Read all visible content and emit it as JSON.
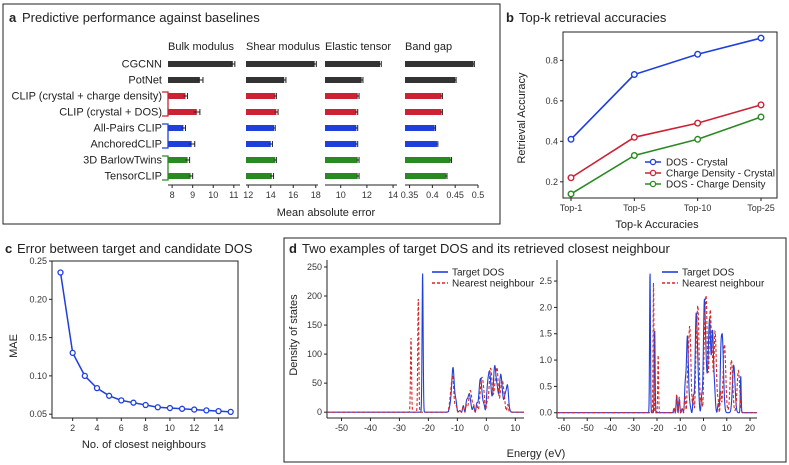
{
  "colors": {
    "black": "#333333",
    "red": "#cc2233",
    "blue": "#1f3fdd",
    "green": "#2a8a22",
    "dos_blue": "#1f3fdd",
    "dos_red": "#d62728",
    "top_blue": "#1f3fdd",
    "top_red": "#cc2233",
    "top_green": "#2a8a22"
  },
  "chart_data": [
    {
      "id": "a",
      "type": "bar",
      "panel_letter": "a",
      "title": "Predictive performance against baselines",
      "xlabel": "Mean absolute error",
      "methods": [
        {
          "name": "CGCNN",
          "color": "black"
        },
        {
          "name": "PotNet",
          "color": "black"
        },
        {
          "name": "CLIP (crystal + charge density)",
          "color": "red"
        },
        {
          "name": "CLIP (crystal + DOS)",
          "color": "red"
        },
        {
          "name": "All-Pairs CLIP",
          "color": "blue"
        },
        {
          "name": "AnchoredCLIP",
          "color": "blue"
        },
        {
          "name": "3D BarlowTwins",
          "color": "green"
        },
        {
          "name": "TensorCLIP",
          "color": "green"
        }
      ],
      "subplots": [
        {
          "title": "Bulk modulus",
          "xlim": [
            7.8,
            11.3
          ],
          "ticks": [
            8,
            9,
            10,
            11
          ],
          "values": [
            10.95,
            9.35,
            8.65,
            9.2,
            8.55,
            8.95,
            8.75,
            8.9
          ],
          "errors": [
            0.1,
            0.15,
            0.1,
            0.15,
            0.1,
            0.15,
            0.1,
            0.1
          ]
        },
        {
          "title": "Shear modulus",
          "xlim": [
            11.8,
            18.2
          ],
          "ticks": [
            12,
            14,
            16,
            18
          ],
          "values": [
            17.9,
            15.2,
            14.4,
            14.5,
            14.3,
            14.0,
            14.4,
            14.1
          ],
          "errors": [
            0.15,
            0.15,
            0.1,
            0.15,
            0.1,
            0.15,
            0.1,
            0.15
          ]
        },
        {
          "title": "Elastic tensor",
          "xlim": [
            8.8,
            14.3
          ],
          "ticks": [
            10,
            12,
            14
          ],
          "values": [
            13.0,
            11.6,
            11.3,
            11.2,
            11.2,
            11.2,
            11.3,
            11.3
          ],
          "errors": [
            0.1,
            0.1,
            0.1,
            0.1,
            0.1,
            0.1,
            0.1,
            0.1
          ]
        },
        {
          "title": "Band gap",
          "xlim": [
            0.34,
            0.5
          ],
          "ticks": [
            0.35,
            0.4,
            0.45,
            0.5
          ],
          "tick_labels": [
            "0.35",
            "0.4",
            "0.45",
            "0.5"
          ],
          "values": [
            0.49,
            0.45,
            0.42,
            0.42,
            0.405,
            0.41,
            0.44,
            0.43
          ],
          "errors": [
            0.002,
            0.002,
            0.002,
            0.002,
            0.002,
            0.002,
            0.002,
            0.002
          ]
        }
      ]
    },
    {
      "id": "b",
      "type": "line",
      "panel_letter": "b",
      "title": "Top-k retrieval accuracies",
      "xlabel": "Top-k Accuracies",
      "ylabel": "Retrieval Accuracy",
      "categories": [
        "Top-1",
        "Top-5",
        "Top-10",
        "Top-25"
      ],
      "ylim": [
        0.12,
        0.94
      ],
      "yticks": [
        0.2,
        0.4,
        0.6,
        0.8
      ],
      "series": [
        {
          "name": "DOS - Crystal",
          "color": "top_blue",
          "values": [
            0.41,
            0.73,
            0.83,
            0.91
          ]
        },
        {
          "name": "Charge Density - Crystal",
          "color": "top_red",
          "values": [
            0.22,
            0.42,
            0.49,
            0.58
          ]
        },
        {
          "name": "DOS - Charge Density",
          "color": "top_green",
          "values": [
            0.14,
            0.33,
            0.41,
            0.52
          ]
        }
      ]
    },
    {
      "id": "c",
      "type": "line",
      "panel_letter": "c",
      "title": "Error between target and candidate DOS",
      "xlabel": "No. of closest neighbours",
      "ylabel": "MAE",
      "xlim": [
        0.3,
        15.6
      ],
      "ylim": [
        0.045,
        0.25
      ],
      "xticks": [
        2,
        4,
        6,
        8,
        10,
        12,
        14
      ],
      "yticks": [
        0.05,
        0.1,
        0.15,
        0.2,
        0.25
      ],
      "ytick_labels": [
        "0.05",
        "0.10",
        "0.15",
        "0.20",
        "0.25"
      ],
      "series": [
        {
          "name": "MAE",
          "color": "dos_blue",
          "x": [
            1,
            2,
            3,
            4,
            5,
            6,
            7,
            8,
            9,
            10,
            11,
            12,
            13,
            14,
            15
          ],
          "values": [
            0.235,
            0.13,
            0.1,
            0.084,
            0.074,
            0.068,
            0.065,
            0.062,
            0.059,
            0.058,
            0.057,
            0.056,
            0.055,
            0.054,
            0.053
          ]
        }
      ]
    },
    {
      "id": "d",
      "type": "line",
      "panel_letter": "d",
      "title": "Two examples of target DOS and its retrieved closest neighbour",
      "xlabel": "Energy (eV)",
      "ylabel": "Density of states",
      "legend": [
        "Target DOS",
        "Nearest neighbour"
      ],
      "subplots": [
        {
          "xlim": [
            -55,
            13
          ],
          "ylim": [
            -10,
            262
          ],
          "xticks": [
            -50,
            -40,
            -30,
            -20,
            -10,
            0,
            10
          ],
          "yticks": [
            0,
            50,
            100,
            150,
            200,
            250
          ],
          "peaks_target": [
            [
              -22,
              240
            ],
            [
              -11.5,
              65
            ],
            [
              -6,
              30
            ],
            [
              -2,
              55
            ],
            [
              1,
              70
            ],
            [
              3,
              75
            ],
            [
              5,
              60
            ],
            [
              7,
              40
            ]
          ],
          "peaks_neighbour": [
            [
              -26,
              128
            ],
            [
              -23.5,
              195
            ],
            [
              -11.8,
              55
            ],
            [
              -5.5,
              35
            ],
            [
              -1.5,
              60
            ],
            [
              1.5,
              72
            ],
            [
              3.5,
              70
            ],
            [
              5.5,
              55
            ]
          ]
        },
        {
          "xlim": [
            -63,
            23
          ],
          "ylim": [
            -0.1,
            2.9
          ],
          "xticks": [
            -60,
            -50,
            -40,
            -30,
            -20,
            -10,
            0,
            10,
            20
          ],
          "yticks": [
            0.0,
            0.5,
            1.0,
            1.5,
            2.0,
            2.5
          ],
          "ytick_labels": [
            "0.0",
            "0.5",
            "1.0",
            "1.5",
            "2.0",
            "2.5"
          ],
          "peaks_target": [
            [
              -23,
              2.7
            ],
            [
              -21,
              1.6
            ],
            [
              -7,
              1.2
            ],
            [
              -3,
              1.7
            ],
            [
              0.5,
              1.9
            ],
            [
              2.5,
              1.6
            ],
            [
              4,
              1.2
            ],
            [
              8,
              1.5
            ],
            [
              13,
              0.9
            ],
            [
              16,
              0.7
            ]
          ],
          "peaks_neighbour": [
            [
              -21.5,
              2.5
            ],
            [
              -19.5,
              1.1
            ],
            [
              -6,
              1.6
            ],
            [
              -2.5,
              2.0
            ],
            [
              1,
              2.2
            ],
            [
              3,
              1.8
            ],
            [
              5,
              1.4
            ],
            [
              9,
              1.3
            ],
            [
              12,
              1.0
            ],
            [
              15,
              0.8
            ]
          ]
        }
      ]
    }
  ]
}
